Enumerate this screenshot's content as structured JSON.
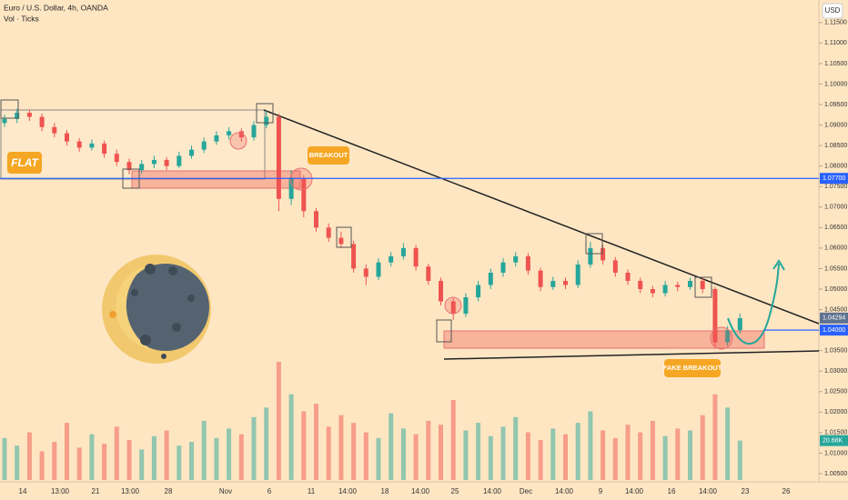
{
  "chart_data": {
    "type": "candlestick",
    "title": "Euro / U.S. Dollar, 4h, OANDA",
    "subtitle": "Vol · Ticks",
    "currency": "USD",
    "annotations": [
      "FLAT",
      "BREAKOUT",
      "FAKE BREAKOUT"
    ],
    "up_color": "#26a69a",
    "down_color": "#ef5350",
    "ylim": [
      1.003,
      1.1205
    ],
    "yticks": [
      {
        "value": 1.005,
        "label": "1.00500"
      },
      {
        "value": 1.01,
        "label": "1.01000"
      },
      {
        "value": 1.015,
        "label": "1.01500"
      },
      {
        "value": 1.02,
        "label": "1.02000"
      },
      {
        "value": 1.025,
        "label": "1.02500"
      },
      {
        "value": 1.03,
        "label": "1.03000"
      },
      {
        "value": 1.035,
        "label": "1.03500"
      },
      {
        "value": 1.045,
        "label": "1.04500"
      },
      {
        "value": 1.05,
        "label": "1.05000"
      },
      {
        "value": 1.055,
        "label": "1.05500"
      },
      {
        "value": 1.06,
        "label": "1.06000"
      },
      {
        "value": 1.065,
        "label": "1.06500"
      },
      {
        "value": 1.07,
        "label": "1.07000"
      },
      {
        "value": 1.075,
        "label": "1.07500"
      },
      {
        "value": 1.08,
        "label": "1.08000"
      },
      {
        "value": 1.085,
        "label": "1.08500"
      },
      {
        "value": 1.09,
        "label": "1.09000"
      },
      {
        "value": 1.095,
        "label": "1.09500"
      },
      {
        "value": 1.1,
        "label": "1.10000"
      },
      {
        "value": 1.105,
        "label": "1.10500"
      },
      {
        "value": 1.11,
        "label": "1.11000"
      },
      {
        "value": 1.115,
        "label": "1.11500"
      }
    ],
    "price_lines": [
      {
        "value": 1.077,
        "label": "1.07700"
      },
      {
        "value": 1.04,
        "label": "1.04000"
      }
    ],
    "last_price": {
      "value": 1.04294,
      "label": "1.04294"
    },
    "last_volume": {
      "value": 20680,
      "label": "20.68K"
    },
    "x_labels": [
      "14",
      "13:00",
      "21",
      "13:00",
      "28",
      "Nov",
      "6",
      "11",
      "14:00",
      "18",
      "14:00",
      "25",
      "14:00",
      "Dec",
      "14:00",
      "9",
      "14:00",
      "16",
      "14:00",
      "23",
      "26"
    ],
    "ohlc": [
      [
        1.0905,
        1.0925,
        1.0895,
        1.0915
      ],
      [
        1.0915,
        1.094,
        1.0905,
        1.093
      ],
      [
        1.093,
        1.0938,
        1.091,
        1.092
      ],
      [
        1.092,
        1.0928,
        1.0885,
        1.0895
      ],
      [
        1.0895,
        1.0905,
        1.087,
        1.088
      ],
      [
        1.088,
        1.0888,
        1.085,
        1.086
      ],
      [
        1.086,
        1.0868,
        1.0835,
        1.0845
      ],
      [
        1.0845,
        1.0865,
        1.0838,
        1.0855
      ],
      [
        1.0855,
        1.0862,
        1.082,
        1.083
      ],
      [
        1.083,
        1.084,
        1.08,
        1.081
      ],
      [
        1.081,
        1.0818,
        1.078,
        1.079
      ],
      [
        1.079,
        1.0815,
        1.0782,
        1.0805
      ],
      [
        1.0805,
        1.0825,
        1.0795,
        1.0815
      ],
      [
        1.0815,
        1.0822,
        1.079,
        1.08
      ],
      [
        1.08,
        1.0835,
        1.0795,
        1.0825
      ],
      [
        1.0825,
        1.085,
        1.0818,
        1.084
      ],
      [
        1.084,
        1.087,
        1.0832,
        1.086
      ],
      [
        1.086,
        1.0885,
        1.0852,
        1.0875
      ],
      [
        1.0875,
        1.0895,
        1.0865,
        1.0885
      ],
      [
        1.0885,
        1.0892,
        1.086,
        1.087
      ],
      [
        1.087,
        1.091,
        1.0862,
        1.09
      ],
      [
        1.09,
        1.0935,
        1.0892,
        1.092
      ],
      [
        1.092,
        1.0928,
        1.069,
        1.072
      ],
      [
        1.072,
        1.079,
        1.0705,
        1.077
      ],
      [
        1.077,
        1.0778,
        1.0675,
        1.069
      ],
      [
        1.069,
        1.0698,
        1.064,
        1.065
      ],
      [
        1.065,
        1.066,
        1.0615,
        1.0625
      ],
      [
        1.0625,
        1.064,
        1.06,
        1.061
      ],
      [
        1.061,
        1.0618,
        1.054,
        1.055
      ],
      [
        1.055,
        1.056,
        1.051,
        1.053
      ],
      [
        1.053,
        1.0575,
        1.0522,
        1.0565
      ],
      [
        1.0565,
        1.059,
        1.0555,
        1.058
      ],
      [
        1.058,
        1.0612,
        1.0572,
        1.06
      ],
      [
        1.06,
        1.0608,
        1.0545,
        1.0555
      ],
      [
        1.0555,
        1.0562,
        1.051,
        1.052
      ],
      [
        1.052,
        1.0528,
        1.046,
        1.047
      ],
      [
        1.047,
        1.0478,
        1.0425,
        1.044
      ],
      [
        1.044,
        1.049,
        1.0432,
        1.048
      ],
      [
        1.048,
        1.052,
        1.047,
        1.051
      ],
      [
        1.051,
        1.055,
        1.05,
        1.054
      ],
      [
        1.054,
        1.0575,
        1.053,
        1.0565
      ],
      [
        1.0565,
        1.059,
        1.0555,
        1.058
      ],
      [
        1.058,
        1.0588,
        1.0535,
        1.0545
      ],
      [
        1.0545,
        1.0552,
        1.0495,
        1.0505
      ],
      [
        1.0505,
        1.053,
        1.0498,
        1.052
      ],
      [
        1.052,
        1.0528,
        1.05,
        1.051
      ],
      [
        1.051,
        1.057,
        1.0502,
        1.056
      ],
      [
        1.056,
        1.0615,
        1.0552,
        1.06
      ],
      [
        1.06,
        1.0608,
        1.056,
        1.057
      ],
      [
        1.057,
        1.0578,
        1.053,
        1.054
      ],
      [
        1.054,
        1.0548,
        1.051,
        1.052
      ],
      [
        1.052,
        1.0528,
        1.049,
        1.05
      ],
      [
        1.05,
        1.0508,
        1.048,
        1.049
      ],
      [
        1.049,
        1.052,
        1.0482,
        1.051
      ],
      [
        1.051,
        1.0518,
        1.0495,
        1.0505
      ],
      [
        1.0505,
        1.0528,
        1.0498,
        1.052
      ],
      [
        1.052,
        1.0528,
        1.049,
        1.05
      ],
      [
        1.05,
        1.0505,
        1.0355,
        1.037
      ],
      [
        1.037,
        1.041,
        1.0362,
        1.04
      ],
      [
        1.04,
        1.044,
        1.0392,
        1.0429
      ]
    ],
    "volume": [
      22000,
      18000,
      25000,
      15000,
      20000,
      30000,
      17000,
      24000,
      19000,
      28000,
      21000,
      16000,
      23000,
      26000,
      18000,
      20000,
      31000,
      22000,
      27000,
      24000,
      33000,
      38000,
      62000,
      45000,
      36000,
      40000,
      28000,
      34000,
      30000,
      25000,
      22000,
      35000,
      27000,
      24000,
      31000,
      29000,
      42000,
      26000,
      30000,
      23000,
      28000,
      33000,
      25000,
      21000,
      27000,
      24000,
      30000,
      36000,
      26000,
      22000,
      29000,
      25000,
      31000,
      23000,
      27000,
      26000,
      34000,
      45000,
      38000,
      20680
    ]
  }
}
